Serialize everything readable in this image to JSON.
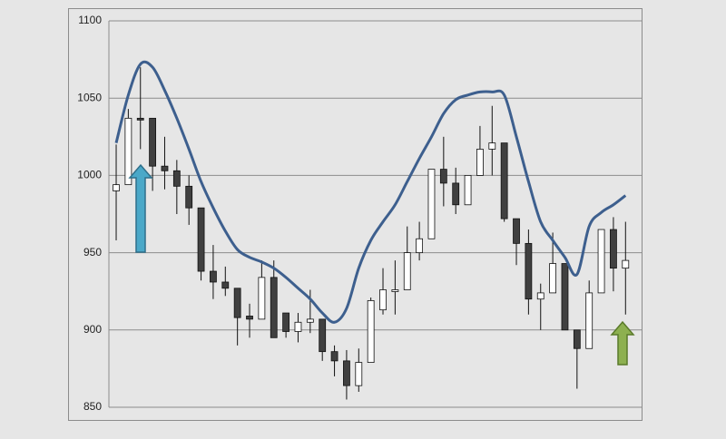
{
  "chart_data": {
    "type": "candlestick",
    "open": [
      990,
      994,
      1037,
      1037,
      1006,
      1003,
      993,
      979,
      938,
      931,
      927,
      909,
      907,
      934,
      911,
      899,
      905,
      907,
      886,
      880,
      864,
      879,
      913,
      925,
      926,
      950,
      959,
      1004,
      995,
      981,
      1000,
      1017,
      1021,
      972,
      956,
      920,
      924,
      943,
      900,
      888,
      924,
      965,
      940
    ],
    "high": [
      1020,
      1043,
      1070,
      1037,
      1025,
      1010,
      1000,
      979,
      955,
      941,
      927,
      917,
      945,
      945,
      911,
      911,
      926,
      907,
      890,
      887,
      888,
      921,
      940,
      945,
      967,
      970,
      1004,
      1025,
      1005,
      1000,
      1032,
      1045,
      1021,
      972,
      965,
      930,
      963,
      943,
      900,
      932,
      965,
      973,
      970
    ],
    "low": [
      958,
      994,
      1017,
      990,
      991,
      975,
      968,
      932,
      920,
      922,
      890,
      895,
      907,
      895,
      895,
      892,
      898,
      880,
      870,
      855,
      860,
      879,
      910,
      910,
      926,
      945,
      959,
      980,
      975,
      981,
      1000,
      1000,
      970,
      942,
      910,
      900,
      924,
      900,
      862,
      888,
      924,
      925,
      910
    ],
    "close": [
      994,
      1037,
      1036,
      1006,
      1003,
      993,
      979,
      938,
      931,
      927,
      908,
      907,
      934,
      895,
      899,
      905,
      907,
      886,
      880,
      864,
      879,
      919,
      926,
      926,
      950,
      959,
      1004,
      995,
      981,
      1000,
      1017,
      1021,
      972,
      956,
      920,
      924,
      943,
      900,
      888,
      924,
      965,
      940,
      945
    ],
    "up_color": "#ffffff",
    "down_color": "#404040",
    "overlay": {
      "type": "line",
      "color": "#3d5f8e",
      "values": [
        1021,
        1052,
        1072,
        1070,
        1055,
        1037,
        1017,
        996,
        979,
        964,
        952,
        947,
        944,
        940,
        934,
        927,
        920,
        911,
        905,
        914,
        940,
        958,
        970,
        981,
        996,
        1011,
        1025,
        1040,
        1049,
        1052,
        1054,
        1054,
        1052,
        1025,
        996,
        970,
        958,
        947,
        936,
        967,
        976,
        981,
        987
      ]
    },
    "ylim": [
      850,
      1100
    ],
    "yticks": [
      850,
      900,
      950,
      1000,
      1050,
      1100
    ],
    "grid": true
  }
}
